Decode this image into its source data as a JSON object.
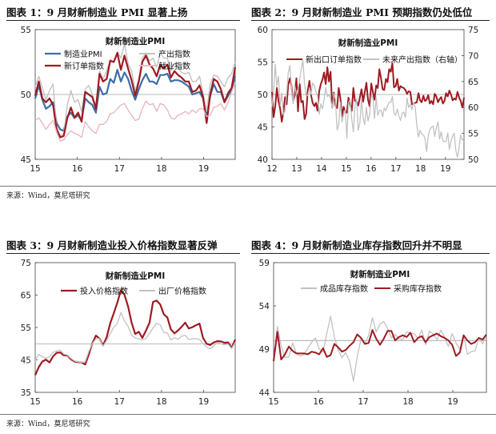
{
  "colors": {
    "red": "#9e1b22",
    "blue": "#3c6ea8",
    "gray": "#c2c2c2",
    "pink": "#e8b8c0",
    "axis": "#444444"
  },
  "source_text": "来源：Wind，莫尼塔研究",
  "chart_data": [
    {
      "type": "line",
      "panel_title": "图表 1：9 月财新制造业 PMI 显著上扬",
      "title": "财新制造业PMI",
      "ylim": [
        45,
        55
      ],
      "yticks": [
        "45",
        "50",
        "55"
      ],
      "xlim": [
        2015,
        2019.75
      ],
      "xticks": [
        {
          "v": 2015,
          "label": "15"
        },
        {
          "v": 2016,
          "label": "16"
        },
        {
          "v": 2017,
          "label": "17"
        },
        {
          "v": 2018,
          "label": "18"
        },
        {
          "v": 2019,
          "label": "19"
        }
      ],
      "refline": 50,
      "legend_cols": 2,
      "series": [
        {
          "name": "制造业PMI",
          "color": "blue",
          "width": 2.2,
          "axis": "left",
          "values": [
            49.7,
            50.7,
            49.6,
            48.9,
            49.1,
            49.4,
            47.8,
            47.3,
            47.2,
            48.3,
            48.6,
            48.2,
            48.4,
            48.0,
            49.7,
            49.4,
            49.2,
            48.6,
            50.6,
            50.0,
            50.1,
            51.2,
            50.9,
            51.9,
            51.0,
            51.7,
            51.2,
            50.3,
            49.6,
            50.4,
            51.1,
            51.6,
            51.0,
            51.0,
            50.8,
            51.5,
            51.5,
            51.6,
            51.0,
            51.1,
            51.1,
            51.0,
            50.8,
            50.6,
            50.0,
            50.1,
            50.2,
            49.7,
            48.3,
            49.9,
            50.8,
            50.2,
            50.2,
            49.4,
            49.9,
            50.4,
            51.4
          ]
        },
        {
          "name": "产出指数",
          "color": "gray",
          "width": 1.4,
          "axis": "left",
          "values": [
            50.6,
            51.4,
            50.5,
            49.6,
            50.3,
            50.8,
            47.5,
            46.8,
            47.0,
            49.2,
            50.3,
            49.4,
            49.6,
            48.7,
            50.4,
            50.7,
            50.0,
            49.1,
            51.8,
            51.2,
            51.8,
            52.7,
            52.5,
            53.3,
            52.8,
            53.9,
            52.4,
            51.8,
            50.3,
            51.2,
            52.8,
            53.2,
            52.6,
            52.8,
            52.1,
            53.2,
            52.8,
            52.8,
            51.8,
            52.4,
            52.1,
            51.7,
            51.6,
            51.7,
            51.0,
            51.0,
            51.4,
            50.1,
            48.7,
            50.8,
            51.5,
            51.4,
            51.0,
            50.6,
            51.3,
            51.6,
            52.5
          ]
        },
        {
          "name": "新订单指数",
          "color": "red",
          "width": 2.2,
          "axis": "left",
          "values": [
            49.9,
            51.0,
            49.7,
            49.4,
            49.7,
            49.2,
            47.3,
            46.7,
            46.8,
            48.2,
            49.0,
            48.2,
            48.6,
            47.9,
            50.2,
            50.0,
            49.8,
            48.9,
            51.6,
            51.0,
            51.2,
            52.6,
            52.5,
            53.2,
            51.9,
            53.0,
            52.0,
            51.1,
            49.9,
            51.0,
            52.5,
            53.0,
            52.3,
            52.0,
            51.4,
            52.3,
            52.0,
            52.3,
            51.3,
            51.8,
            51.5,
            51.3,
            51.0,
            51.0,
            50.2,
            50.3,
            50.7,
            49.8,
            47.8,
            50.0,
            51.2,
            51.0,
            50.4,
            49.4,
            50.1,
            50.5,
            52.1
          ]
        },
        {
          "name": "就业指数",
          "color": "pink",
          "width": 1.4,
          "axis": "left",
          "values": [
            48.0,
            48.2,
            47.8,
            47.3,
            47.7,
            48.0,
            47.1,
            46.4,
            46.5,
            46.9,
            47.2,
            47.0,
            46.9,
            46.7,
            47.9,
            47.5,
            47.2,
            47.0,
            47.7,
            47.7,
            47.9,
            48.5,
            48.6,
            48.9,
            49.2,
            49.3,
            48.8,
            48.4,
            48.0,
            48.1,
            48.9,
            49.5,
            49.2,
            49.3,
            48.7,
            49.3,
            49.2,
            48.8,
            48.2,
            48.1,
            48.4,
            48.5,
            48.7,
            48.5,
            48.8,
            48.6,
            48.9,
            48.9,
            48.3,
            48.4,
            49.0,
            49.1,
            49.3,
            48.8,
            49.4,
            50.2,
            50.9
          ]
        }
      ]
    },
    {
      "type": "line",
      "panel_title": "图表 2：9 月财新制造业 PMI 预期指数仍处低位",
      "title": "财新制造业PMI",
      "ylim": [
        40,
        60
      ],
      "yticks": [
        "40",
        "45",
        "50",
        "55",
        "60"
      ],
      "y2lim": [
        50,
        75
      ],
      "y2ticks": [
        "50",
        "55",
        "60",
        "65",
        "70",
        "75"
      ],
      "xlim": [
        2012,
        2019.75
      ],
      "xticks": [
        {
          "v": 2012,
          "label": "12"
        },
        {
          "v": 2013,
          "label": "13"
        },
        {
          "v": 2014,
          "label": "14"
        },
        {
          "v": 2015,
          "label": "15"
        },
        {
          "v": 2016,
          "label": "16"
        },
        {
          "v": 2017,
          "label": "17"
        },
        {
          "v": 2018,
          "label": "18"
        },
        {
          "v": 2019,
          "label": "19"
        }
      ],
      "refline": 50,
      "legend_cols": 2,
      "series": [
        {
          "name": "新出口订单指数",
          "color": "red",
          "width": 2.0,
          "axis": "left",
          "values": [
            50.4,
            46.5,
            48.2,
            51.0,
            49.0,
            47.8,
            45.8,
            47.2,
            49.6,
            48.5,
            51.5,
            52.5,
            51.3,
            49.0,
            49.9,
            52.5,
            47.4,
            51.6,
            48.8,
            49.0,
            46.2,
            47.0,
            50.6,
            52.1,
            49.9,
            48.7,
            48.2,
            48.7,
            47.5,
            50.5,
            51.6,
            52.3,
            53.4,
            51.6,
            54.2,
            52.0,
            53.5,
            48.0,
            50.3,
            48.3,
            47.9,
            51.0,
            49.5,
            46.6,
            48.1,
            47.4,
            47.2,
            49.5,
            48.5,
            47.5,
            51.0,
            49.0,
            48.9,
            48.3,
            49.5,
            50.8,
            48.9,
            50.3,
            51.8,
            49.2,
            48.2,
            51.7,
            50.4,
            49.2,
            51.4,
            51.0,
            53.9,
            52.5,
            50.8,
            50.7,
            52.4,
            51.9,
            53.9,
            53.5,
            54.8,
            51.1,
            51.3,
            52.4,
            50.6,
            51.3,
            51.1,
            51.0,
            50.7,
            50.1,
            50.5,
            50.4,
            48.5,
            48.6,
            48.7,
            48.8,
            50.2,
            49.1,
            48.8,
            49.8,
            49.0,
            49.2,
            49.9,
            48.6,
            49.0,
            48.5,
            50.1,
            49.7,
            48.8,
            49.3,
            49.6,
            48.6,
            49.0,
            50.2,
            49.7,
            50.6,
            50.0,
            49.1,
            49.4,
            49.2,
            50.4,
            49.5,
            49.0,
            48.0,
            49.5
          ]
        },
        {
          "name": "未来产出指数（右轴）",
          "color": "gray",
          "width": 1.3,
          "axis": "right",
          "values": [
            60.1,
            63.0,
            68.3,
            64.0,
            66.0,
            60.4,
            62.8,
            58.6,
            59.3,
            62.7,
            66.7,
            68.1,
            63.9,
            60.7,
            64.2,
            62.4,
            63.6,
            65.5,
            67.4,
            69.1,
            64.5,
            62.2,
            62.3,
            63.8,
            62.5,
            64.7,
            64.3,
            63.0,
            62.3,
            58.7,
            60.7,
            59.7,
            61.5,
            63.8,
            62.1,
            62.5,
            61.6,
            59.8,
            62.7,
            61.5,
            55.7,
            56.7,
            61.0,
            57.2,
            58.7,
            59.5,
            54.1,
            60.9,
            61.5,
            57.7,
            55.3,
            60.3,
            61.7,
            55.6,
            57.0,
            61.5,
            58.0,
            56.7,
            60.0,
            57.4,
            58.6,
            62.3,
            61.9,
            57.9,
            62.0,
            58.5,
            59.4,
            59.5,
            58.2,
            59.9,
            59.4,
            60.3,
            61.0,
            61.0,
            62.1,
            59.0,
            58.5,
            59.7,
            58.3,
            57.5,
            58.9,
            59.1,
            58.1,
            61.8,
            60.0,
            60.6,
            59.6,
            61.0,
            60.1,
            56.6,
            54.3,
            55.6,
            54.9,
            54.7,
            54.1,
            51.5,
            54.5,
            55.7,
            56.2,
            56.4,
            54.4,
            56.1,
            57.2,
            53.9,
            55.3,
            53.6,
            53.4,
            53.5,
            55.1,
            51.9,
            53.5,
            54.5,
            55.0,
            51.7,
            50.4,
            52.4,
            54.7,
            53.7,
            54.1
          ]
        }
      ]
    },
    {
      "type": "line",
      "panel_title": "图表 3：9 月财新制造业投入价格指数显著反弹",
      "title": "财新制造业PMI",
      "ylim": [
        35,
        75
      ],
      "yticks": [
        "35",
        "45",
        "55",
        "65",
        "75"
      ],
      "xlim": [
        2015,
        2019.75
      ],
      "xticks": [
        {
          "v": 2015,
          "label": "15"
        },
        {
          "v": 2016,
          "label": "16"
        },
        {
          "v": 2017,
          "label": "17"
        },
        {
          "v": 2018,
          "label": "18"
        },
        {
          "v": 2019,
          "label": "19"
        }
      ],
      "refline": 50,
      "legend_cols": 2,
      "series": [
        {
          "name": "投入价格指数",
          "color": "red",
          "width": 2.2,
          "axis": "left",
          "values": [
            40.3,
            42.8,
            44.5,
            45.1,
            44.2,
            46.1,
            47.2,
            47.3,
            46.4,
            46.4,
            45.2,
            44.5,
            44.3,
            44.2,
            43.6,
            46.7,
            50.1,
            52.5,
            51.6,
            49.5,
            52.0,
            56.3,
            59.4,
            62.7,
            66.5,
            65.1,
            61.5,
            56.5,
            53.0,
            53.7,
            51.8,
            54.0,
            56.5,
            62.9,
            63.3,
            62.1,
            59.1,
            58.1,
            54.4,
            53.2,
            54.1,
            55.2,
            56.5,
            54.7,
            55.1,
            55.7,
            56.2,
            51.8,
            50.0,
            49.6,
            50.4,
            50.8,
            50.7,
            50.3,
            50.4,
            48.7,
            51.3
          ]
        },
        {
          "name": "出厂价格指数",
          "color": "gray",
          "width": 1.3,
          "axis": "left",
          "values": [
            44.8,
            46.7,
            46.0,
            45.5,
            46.0,
            47.4,
            47.8,
            48.0,
            46.8,
            46.5,
            45.5,
            44.7,
            44.4,
            44.2,
            44.4,
            47.6,
            50.0,
            51.5,
            51.6,
            49.2,
            51.0,
            53.1,
            55.1,
            56.2,
            59.6,
            57.0,
            55.4,
            52.6,
            51.8,
            51.5,
            51.2,
            51.6,
            53.2,
            54.9,
            56.3,
            55.8,
            53.5,
            53.3,
            51.2,
            51.8,
            51.4,
            52.3,
            52.6,
            51.3,
            51.5,
            51.6,
            51.3,
            50.1,
            49.0,
            48.4,
            49.3,
            50.4,
            50.0,
            49.7,
            49.9,
            48.5,
            50.4
          ]
        }
      ]
    },
    {
      "type": "line",
      "panel_title": "图表 4：9 月财新制造业库存指数回升并不明显",
      "title": "财新制造业PMI",
      "ylim": [
        44,
        59
      ],
      "yticks": [
        "44",
        "49",
        "54",
        "59"
      ],
      "xlim": [
        2015,
        2019.75
      ],
      "xticks": [
        {
          "v": 2015,
          "label": "15"
        },
        {
          "v": 2016,
          "label": "16"
        },
        {
          "v": 2017,
          "label": "17"
        },
        {
          "v": 2018,
          "label": "18"
        },
        {
          "v": 2019,
          "label": "19"
        }
      ],
      "refline": 50,
      "legend_cols": 2,
      "series": [
        {
          "name": "成品库存指数",
          "color": "gray",
          "width": 1.3,
          "axis": "left",
          "values": [
            47.8,
            51.6,
            49.4,
            48.0,
            48.1,
            49.7,
            48.5,
            48.2,
            48.4,
            49.1,
            49.8,
            50.3,
            49.0,
            48.6,
            50.8,
            52.8,
            50.4,
            48.9,
            48.0,
            48.6,
            47.6,
            45.3,
            48.1,
            50.2,
            49.6,
            50.6,
            52.6,
            51.0,
            51.9,
            52.2,
            51.4,
            50.3,
            50.7,
            50.2,
            50.1,
            51.0,
            50.8,
            50.8,
            50.2,
            51.2,
            49.5,
            51.1,
            50.7,
            50.1,
            51.2,
            50.4,
            49.3,
            50.8,
            49.7,
            49.0,
            50.6,
            48.4,
            48.7,
            48.8,
            50.3,
            49.6,
            50.8
          ]
        },
        {
          "name": "采购库存指数",
          "color": "red",
          "width": 2.0,
          "axis": "left",
          "values": [
            47.6,
            51.0,
            47.8,
            48.4,
            49.3,
            48.8,
            48.5,
            48.5,
            48.5,
            48.4,
            48.7,
            48.6,
            48.4,
            49.1,
            48.1,
            48.3,
            49.6,
            49.2,
            48.7,
            48.9,
            49.4,
            49.8,
            50.7,
            50.3,
            49.6,
            49.7,
            51.2,
            50.2,
            49.5,
            50.2,
            51.1,
            51.1,
            50.0,
            50.4,
            50.6,
            50.4,
            50.9,
            49.8,
            50.3,
            50.5,
            49.8,
            50.4,
            50.6,
            50.8,
            50.5,
            50.3,
            50.0,
            49.5,
            48.2,
            48.6,
            50.6,
            50.0,
            49.6,
            49.8,
            50.3,
            50.1,
            50.7
          ]
        }
      ]
    }
  ]
}
